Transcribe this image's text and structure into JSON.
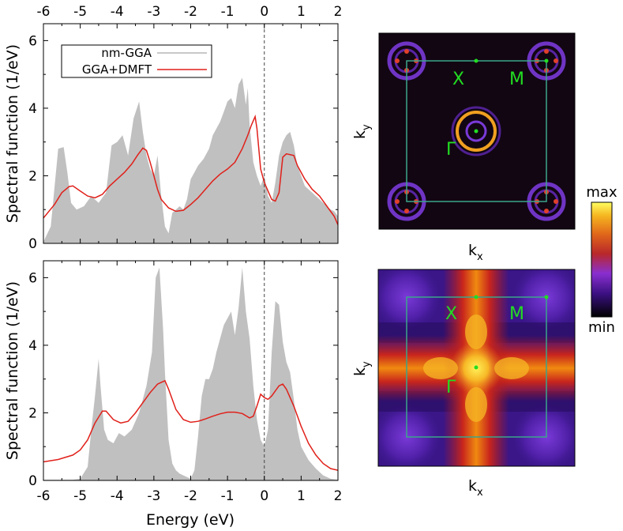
{
  "chart_data": [
    {
      "type": "area+line",
      "panel": "top-spectral",
      "xlabel_top_ticks": [
        "-6",
        "-5",
        "-4",
        "-3",
        "-2",
        "-1",
        "0",
        "1",
        "2"
      ],
      "xlim": [
        -6,
        2
      ],
      "ylim": [
        0,
        6.5
      ],
      "yticks": [
        "0",
        "2",
        "4",
        "6"
      ],
      "ylabel": "Spectral function (1/eV)",
      "legend": {
        "placement": "top-left",
        "entries": [
          "nm-GGA",
          "GGA+DMFT"
        ]
      },
      "series": [
        {
          "name": "nm-GGA",
          "style": "filled-gray",
          "x": [
            -6.0,
            -5.8,
            -5.6,
            -5.45,
            -5.35,
            -5.25,
            -5.1,
            -4.9,
            -4.7,
            -4.5,
            -4.3,
            -4.15,
            -4.0,
            -3.85,
            -3.7,
            -3.55,
            -3.4,
            -3.3,
            -3.2,
            -3.1,
            -3.0,
            -2.9,
            -2.8,
            -2.7,
            -2.6,
            -2.5,
            -2.4,
            -2.3,
            -2.2,
            -2.1,
            -2.0,
            -1.9,
            -1.8,
            -1.65,
            -1.5,
            -1.4,
            -1.3,
            -1.2,
            -1.1,
            -1.0,
            -0.9,
            -0.8,
            -0.7,
            -0.6,
            -0.5,
            -0.45,
            -0.4,
            -0.3,
            -0.2,
            -0.1,
            0.0,
            0.1,
            0.2,
            0.3,
            0.4,
            0.5,
            0.6,
            0.7,
            0.8,
            0.9,
            1.0,
            1.1,
            1.2,
            1.3,
            1.4,
            1.5,
            1.6,
            1.7,
            1.8,
            1.9,
            2.0
          ],
          "y": [
            0.05,
            0.5,
            2.8,
            2.85,
            2.1,
            1.2,
            1.0,
            1.1,
            1.4,
            1.2,
            1.5,
            2.9,
            3.0,
            3.2,
            2.6,
            3.7,
            4.2,
            3.3,
            2.6,
            2.2,
            2.0,
            2.6,
            1.4,
            0.5,
            0.3,
            0.9,
            1.0,
            1.1,
            1.0,
            1.3,
            1.9,
            2.1,
            2.3,
            2.5,
            2.8,
            3.2,
            3.4,
            3.6,
            3.9,
            4.2,
            4.3,
            4.0,
            4.7,
            4.9,
            4.1,
            4.6,
            3.5,
            2.4,
            2.0,
            1.7,
            2.0,
            1.4,
            1.2,
            1.8,
            2.6,
            3.0,
            3.2,
            3.3,
            2.9,
            2.3,
            2.0,
            1.7,
            1.6,
            1.5,
            1.4,
            1.3,
            1.2,
            1.1,
            1.0,
            0.95,
            0.8
          ]
        },
        {
          "name": "GGA+DMFT",
          "style": "red-line",
          "x": [
            -6.0,
            -5.7,
            -5.5,
            -5.3,
            -5.2,
            -5.0,
            -4.8,
            -4.6,
            -4.4,
            -4.2,
            -4.0,
            -3.8,
            -3.6,
            -3.45,
            -3.3,
            -3.2,
            -3.1,
            -3.0,
            -2.9,
            -2.8,
            -2.6,
            -2.4,
            -2.2,
            -2.0,
            -1.8,
            -1.6,
            -1.4,
            -1.2,
            -1.0,
            -0.8,
            -0.6,
            -0.45,
            -0.35,
            -0.25,
            -0.2,
            -0.1,
            0.0,
            0.1,
            0.2,
            0.3,
            0.4,
            0.5,
            0.6,
            0.8,
            0.9,
            1.1,
            1.3,
            1.5,
            1.7,
            1.9,
            2.0
          ],
          "y": [
            0.75,
            1.15,
            1.5,
            1.68,
            1.7,
            1.55,
            1.4,
            1.35,
            1.45,
            1.7,
            1.9,
            2.1,
            2.35,
            2.6,
            2.82,
            2.75,
            2.4,
            2.0,
            1.6,
            1.3,
            1.05,
            0.95,
            0.98,
            1.15,
            1.35,
            1.6,
            1.85,
            2.05,
            2.2,
            2.4,
            2.8,
            3.2,
            3.5,
            3.75,
            3.4,
            2.2,
            1.8,
            1.55,
            1.3,
            1.25,
            1.5,
            2.55,
            2.65,
            2.6,
            2.3,
            1.9,
            1.6,
            1.4,
            1.1,
            0.8,
            0.55
          ]
        }
      ]
    },
    {
      "type": "area+line",
      "panel": "bottom-spectral",
      "xlabel": "Energy (eV)",
      "xticks": [
        "-6",
        "-5",
        "-4",
        "-3",
        "-2",
        "-1",
        "0",
        "1",
        "2"
      ],
      "xlim": [
        -6,
        2
      ],
      "ylim": [
        0,
        6.5
      ],
      "yticks": [
        "0",
        "2",
        "4",
        "6"
      ],
      "ylabel": "Spectral function (1/eV)",
      "series": [
        {
          "name": "nm-GGA",
          "style": "filled-gray",
          "x": [
            -6.0,
            -5.2,
            -5.0,
            -4.8,
            -4.7,
            -4.6,
            -4.5,
            -4.45,
            -4.35,
            -4.25,
            -4.1,
            -3.95,
            -3.8,
            -3.6,
            -3.4,
            -3.2,
            -3.05,
            -2.95,
            -2.85,
            -2.75,
            -2.7,
            -2.6,
            -2.5,
            -2.4,
            -2.3,
            -2.2,
            -2.1,
            -2.0,
            -1.9,
            -1.8,
            -1.7,
            -1.6,
            -1.5,
            -1.4,
            -1.3,
            -1.1,
            -0.9,
            -0.8,
            -0.7,
            -0.6,
            -0.5,
            -0.4,
            -0.3,
            -0.2,
            -0.1,
            0.0,
            0.1,
            0.2,
            0.3,
            0.4,
            0.5,
            0.6,
            0.7,
            0.8,
            0.9,
            1.0,
            1.2,
            1.4,
            1.6,
            1.8,
            2.0
          ],
          "y": [
            0.02,
            0.02,
            0.05,
            0.4,
            1.5,
            2.5,
            3.6,
            2.8,
            1.5,
            1.2,
            1.1,
            1.4,
            1.3,
            1.5,
            2.0,
            2.8,
            3.8,
            6.0,
            6.3,
            4.5,
            3.2,
            1.2,
            0.5,
            0.3,
            0.2,
            0.15,
            0.1,
            0.05,
            0.3,
            1.3,
            2.5,
            3.0,
            3.0,
            3.3,
            3.8,
            4.6,
            5.0,
            4.3,
            5.1,
            6.3,
            5.0,
            4.2,
            2.8,
            1.8,
            1.2,
            1.0,
            1.5,
            3.8,
            5.3,
            5.2,
            4.1,
            3.5,
            3.2,
            2.4,
            1.5,
            1.0,
            0.6,
            0.35,
            0.15,
            0.05,
            0.02
          ]
        },
        {
          "name": "GGA+DMFT",
          "style": "red-line",
          "x": [
            -6.0,
            -5.6,
            -5.2,
            -5.0,
            -4.8,
            -4.6,
            -4.4,
            -4.3,
            -4.1,
            -3.9,
            -3.7,
            -3.5,
            -3.3,
            -3.1,
            -2.9,
            -2.7,
            -2.6,
            -2.4,
            -2.2,
            -2.0,
            -1.8,
            -1.6,
            -1.4,
            -1.2,
            -1.0,
            -0.8,
            -0.6,
            -0.4,
            -0.3,
            -0.2,
            -0.1,
            0.0,
            0.1,
            0.2,
            0.3,
            0.4,
            0.5,
            0.6,
            0.8,
            1.0,
            1.2,
            1.4,
            1.6,
            1.8,
            2.0
          ],
          "y": [
            0.55,
            0.62,
            0.75,
            0.9,
            1.2,
            1.7,
            2.05,
            2.05,
            1.8,
            1.7,
            1.75,
            2.0,
            2.3,
            2.6,
            2.85,
            2.95,
            2.7,
            2.1,
            1.8,
            1.72,
            1.75,
            1.82,
            1.9,
            1.97,
            2.02,
            2.02,
            1.98,
            1.85,
            1.9,
            2.2,
            2.55,
            2.45,
            2.4,
            2.5,
            2.65,
            2.8,
            2.85,
            2.7,
            2.2,
            1.6,
            1.1,
            0.75,
            0.5,
            0.35,
            0.3
          ]
        }
      ]
    },
    {
      "type": "heatmap",
      "panel": "top-fermi-surface",
      "xlabel": "k",
      "xlabel_sub": "x",
      "ylabel": "k",
      "ylabel_sub": "y",
      "points": [
        {
          "label": "Γ"
        },
        {
          "label": "X"
        },
        {
          "label": "M"
        }
      ]
    },
    {
      "type": "heatmap",
      "panel": "bottom-fermi-surface",
      "xlabel": "k",
      "xlabel_sub": "x",
      "ylabel": "k",
      "ylabel_sub": "y",
      "points": [
        {
          "label": "Γ"
        },
        {
          "label": "X"
        },
        {
          "label": "M"
        }
      ]
    }
  ],
  "colorbar": {
    "max_label": "max",
    "min_label": "min"
  },
  "colors": {
    "dos_fill": "#c0c0c0",
    "dmft_line": "#e0201a",
    "bz_box": "#3aa58a",
    "point_label": "#22dd22"
  }
}
